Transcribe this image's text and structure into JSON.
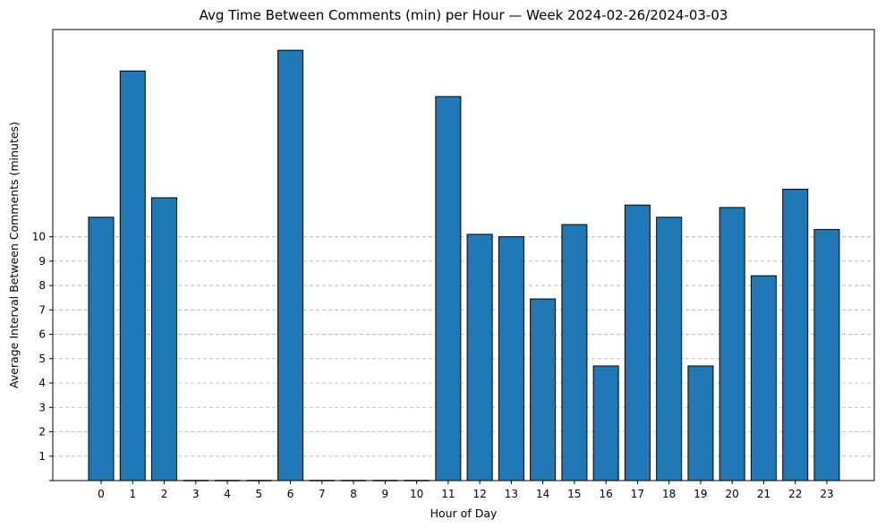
{
  "chart_data": {
    "type": "bar",
    "title": "Avg Time Between Comments (min) per Hour — Week 2024-02-26/2024-03-03",
    "xlabel": "Hour of Day",
    "ylabel": "Average Interval Between Comments (minutes)",
    "categories": [
      "0",
      "1",
      "2",
      "3",
      "4",
      "5",
      "6",
      "7",
      "8",
      "9",
      "10",
      "11",
      "12",
      "13",
      "14",
      "15",
      "16",
      "17",
      "18",
      "19",
      "20",
      "21",
      "22",
      "23"
    ],
    "values": [
      10.8,
      16.8,
      11.6,
      0,
      0,
      0,
      17.65,
      0,
      0,
      0,
      0,
      15.75,
      10.1,
      10.0,
      7.45,
      10.5,
      4.7,
      11.3,
      10.8,
      4.7,
      11.2,
      8.4,
      11.95,
      10.3
    ],
    "yticks": [
      1,
      2,
      3,
      4,
      5,
      6,
      7,
      8,
      9,
      10
    ],
    "ylim": [
      0,
      18.5
    ],
    "grid": "y, dashed",
    "bar_color": "#1f77b4",
    "edge_color": "#000000"
  }
}
